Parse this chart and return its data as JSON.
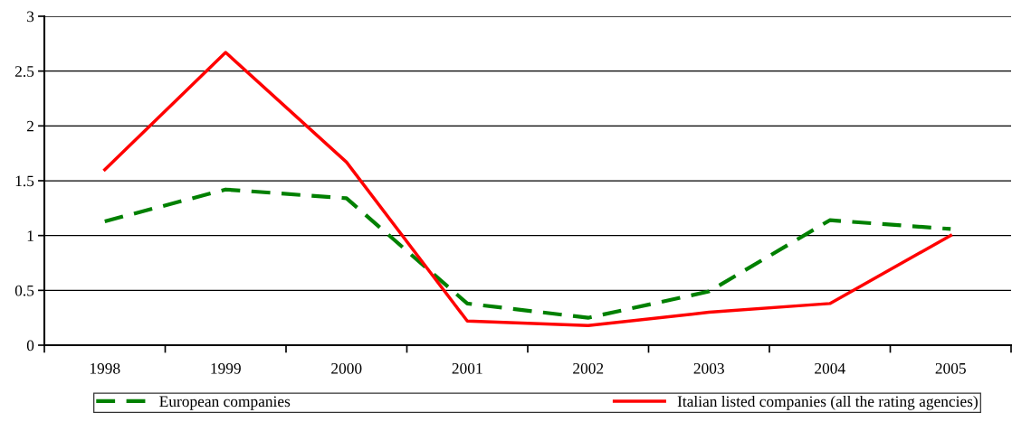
{
  "chart_data": {
    "type": "line",
    "categories": [
      "1998",
      "1999",
      "2000",
      "2001",
      "2002",
      "2003",
      "2004",
      "2005"
    ],
    "series": [
      {
        "name": "European companies",
        "color": "#008000",
        "line_style": "dashed",
        "values": [
          1.13,
          1.42,
          1.34,
          0.38,
          0.25,
          0.49,
          1.14,
          1.06
        ]
      },
      {
        "name": "Italian listed companies (all the rating agencies)",
        "color": "#ff0000",
        "line_style": "solid",
        "values": [
          1.6,
          2.67,
          1.67,
          0.22,
          0.18,
          0.3,
          0.38,
          1.0
        ]
      }
    ],
    "ylim": [
      0,
      3
    ],
    "yticks": [
      0,
      0.5,
      1,
      1.5,
      2,
      2.5,
      3
    ],
    "grid": "y",
    "legend": "bottom",
    "marker": "none"
  }
}
